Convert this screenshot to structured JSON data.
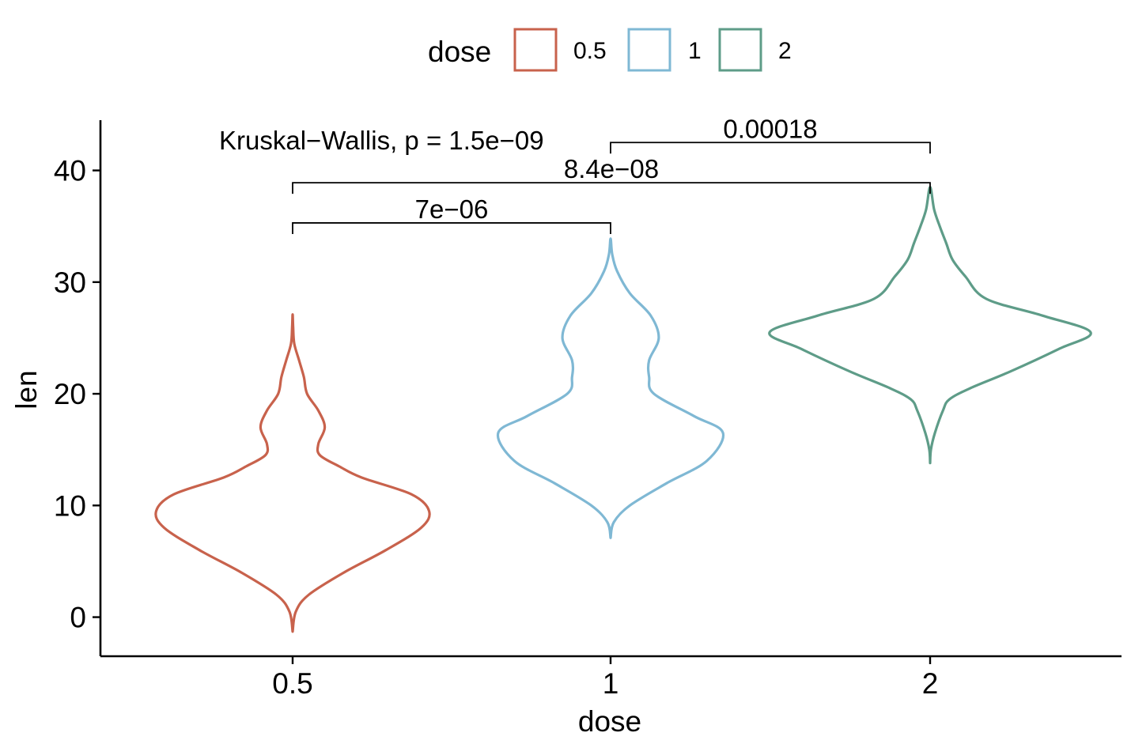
{
  "chart_data": {
    "type": "violin",
    "xlabel": "dose",
    "ylabel": "len",
    "categories": [
      "0.5",
      "1",
      "2"
    ],
    "ylim": [
      -3.5,
      44.5
    ],
    "yticks": [
      0,
      10,
      20,
      30,
      40
    ],
    "grid": false,
    "legend": {
      "title": "dose",
      "placement": "top",
      "entries": [
        {
          "label": "0.5",
          "color": "#c8624c"
        },
        {
          "label": "1",
          "color": "#7fb8d4"
        },
        {
          "label": "2",
          "color": "#5e9c88"
        }
      ]
    },
    "series": [
      {
        "category": "0.5",
        "color": "#c8624c",
        "min": -1.3,
        "max": 27.1,
        "density": [
          {
            "y": -1.3,
            "w": 0.0
          },
          {
            "y": 0.5,
            "w": 0.02
          },
          {
            "y": 2,
            "w": 0.1
          },
          {
            "y": 4,
            "w": 0.32
          },
          {
            "y": 6,
            "w": 0.58
          },
          {
            "y": 8,
            "w": 0.8
          },
          {
            "y": 9.5,
            "w": 0.85
          },
          {
            "y": 11,
            "w": 0.74
          },
          {
            "y": 12.5,
            "w": 0.43
          },
          {
            "y": 13.5,
            "w": 0.29
          },
          {
            "y": 14.5,
            "w": 0.17
          },
          {
            "y": 15.5,
            "w": 0.16
          },
          {
            "y": 17,
            "w": 0.2
          },
          {
            "y": 18.5,
            "w": 0.16
          },
          {
            "y": 20,
            "w": 0.09
          },
          {
            "y": 21.5,
            "w": 0.07
          },
          {
            "y": 23,
            "w": 0.04
          },
          {
            "y": 24.5,
            "w": 0.01
          },
          {
            "y": 26,
            "w": 0.003
          },
          {
            "y": 27.1,
            "w": 0.0
          }
        ]
      },
      {
        "category": "1",
        "color": "#7fb8d4",
        "min": 7.1,
        "max": 33.9,
        "density": [
          {
            "y": 7.1,
            "w": 0.0
          },
          {
            "y": 8.5,
            "w": 0.02
          },
          {
            "y": 10,
            "w": 0.12
          },
          {
            "y": 12,
            "w": 0.35
          },
          {
            "y": 14,
            "w": 0.6
          },
          {
            "y": 16.5,
            "w": 0.7
          },
          {
            "y": 18,
            "w": 0.52
          },
          {
            "y": 20,
            "w": 0.27
          },
          {
            "y": 21.5,
            "w": 0.24
          },
          {
            "y": 23,
            "w": 0.24
          },
          {
            "y": 25,
            "w": 0.3
          },
          {
            "y": 27,
            "w": 0.25
          },
          {
            "y": 29,
            "w": 0.12
          },
          {
            "y": 31,
            "w": 0.04
          },
          {
            "y": 32.5,
            "w": 0.01
          },
          {
            "y": 33.9,
            "w": 0.0
          }
        ]
      },
      {
        "category": "2",
        "color": "#5e9c88",
        "min": 13.8,
        "max": 38.5,
        "density": [
          {
            "y": 13.8,
            "w": 0.0
          },
          {
            "y": 15,
            "w": 0.005
          },
          {
            "y": 16.5,
            "w": 0.03
          },
          {
            "y": 18.5,
            "w": 0.08
          },
          {
            "y": 19.5,
            "w": 0.12
          },
          {
            "y": 20.5,
            "w": 0.25
          },
          {
            "y": 22,
            "w": 0.5
          },
          {
            "y": 24,
            "w": 0.8
          },
          {
            "y": 25.5,
            "w": 1.0
          },
          {
            "y": 27,
            "w": 0.7
          },
          {
            "y": 28.5,
            "w": 0.35
          },
          {
            "y": 30.5,
            "w": 0.22
          },
          {
            "y": 32,
            "w": 0.14
          },
          {
            "y": 33.5,
            "w": 0.1
          },
          {
            "y": 35,
            "w": 0.06
          },
          {
            "y": 36.5,
            "w": 0.025
          },
          {
            "y": 38.5,
            "w": 0.0
          }
        ]
      }
    ],
    "annotations": {
      "global_test": "Kruskal−Wallis, p = 1.5e−09",
      "comparisons": [
        {
          "from": "0.5",
          "to": "1",
          "label": "7e−06",
          "y": 35.3
        },
        {
          "from": "0.5",
          "to": "2",
          "label": "8.4e−08",
          "y": 38.9
        },
        {
          "from": "1",
          "to": "2",
          "label": "0.00018",
          "y": 42.5
        }
      ]
    }
  }
}
